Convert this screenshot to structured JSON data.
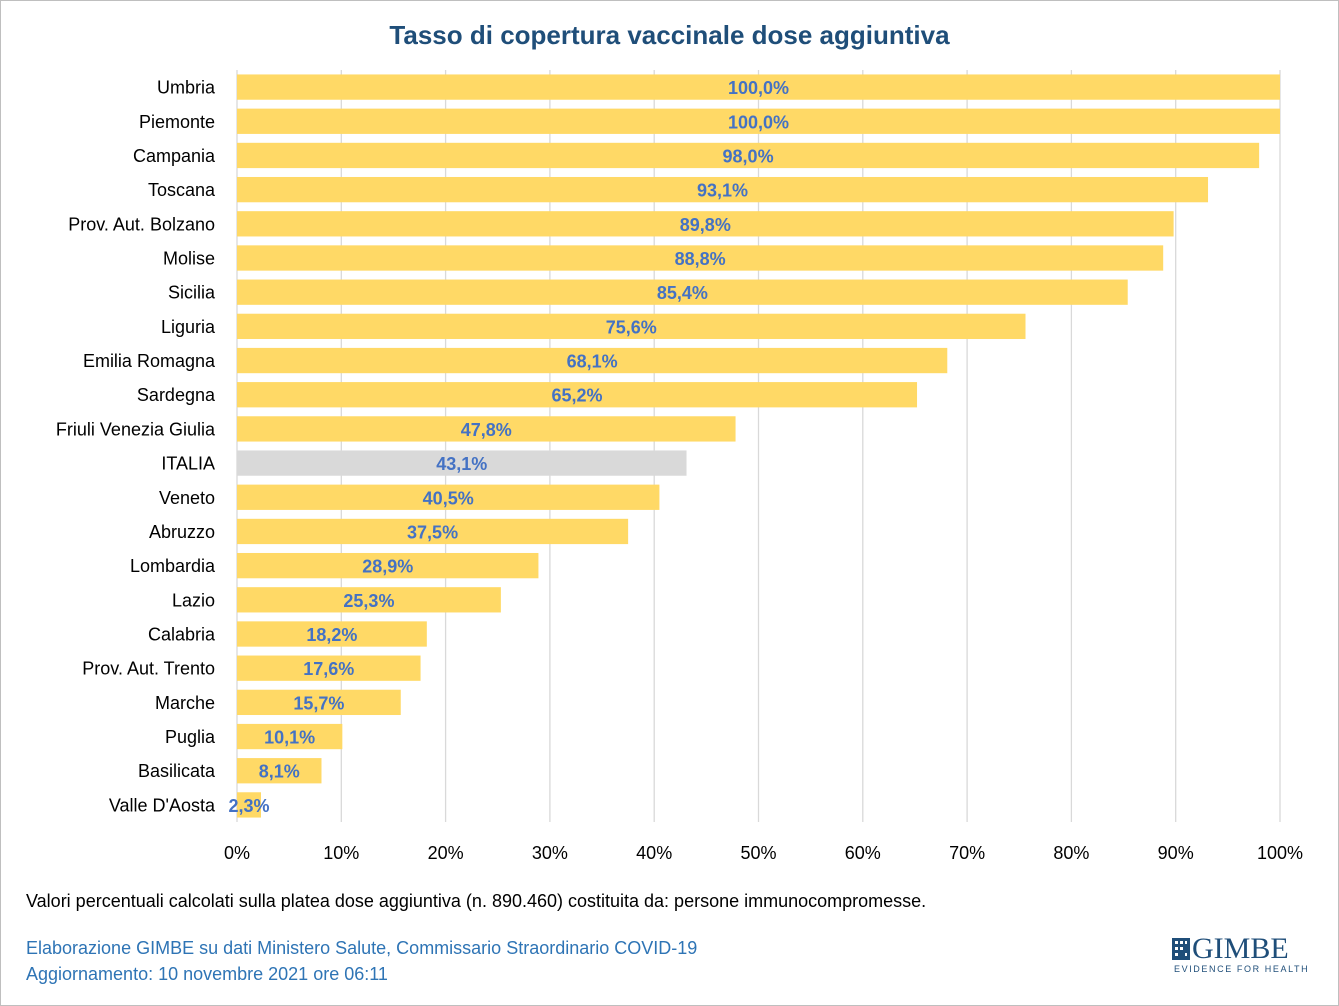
{
  "chart_data": {
    "type": "bar",
    "orientation": "horizontal",
    "title": "Tasso di copertura vaccinale dose aggiuntiva",
    "categories": [
      "Umbria",
      "Piemonte",
      "Campania",
      "Toscana",
      "Prov. Aut. Bolzano",
      "Molise",
      "Sicilia",
      "Liguria",
      "Emilia Romagna",
      "Sardegna",
      "Friuli Venezia Giulia",
      "ITALIA",
      "Veneto",
      "Abruzzo",
      "Lombardia",
      "Lazio",
      "Calabria",
      "Prov. Aut. Trento",
      "Marche",
      "Puglia",
      "Basilicata",
      "Valle D'Aosta"
    ],
    "values": [
      100.0,
      100.0,
      98.0,
      93.1,
      89.8,
      88.8,
      85.4,
      75.6,
      68.1,
      65.2,
      47.8,
      43.1,
      40.5,
      37.5,
      28.9,
      25.3,
      18.2,
      17.6,
      15.7,
      10.1,
      8.1,
      2.3
    ],
    "data_labels": [
      "100,0%",
      "100,0%",
      "98,0%",
      "93,1%",
      "89,8%",
      "88,8%",
      "85,4%",
      "75,6%",
      "68,1%",
      "65,2%",
      "47,8%",
      "43,1%",
      "40,5%",
      "37,5%",
      "28,9%",
      "25,3%",
      "18,2%",
      "17,6%",
      "15,7%",
      "10,1%",
      "8,1%",
      "2,3%"
    ],
    "highlight_category": "ITALIA",
    "xlim": [
      0,
      100
    ],
    "x_ticks": [
      "0%",
      "10%",
      "20%",
      "30%",
      "40%",
      "50%",
      "60%",
      "70%",
      "80%",
      "90%",
      "100%"
    ],
    "grid": true,
    "colors": {
      "bar": "#ffd966",
      "highlight": "#d9d9d9",
      "label": "#4472c4",
      "grid": "#d9d9d9"
    }
  },
  "footer": {
    "note": "Valori percentuali calcolati sulla platea dose aggiuntiva (n. 890.460) costituita da: persone immunocompromesse.",
    "source": "Elaborazione GIMBE su dati Ministero Salute, Commissario Straordinario COVID-19",
    "update": "Aggiornamento: 10 novembre 2021 ore 06:11"
  },
  "logo": {
    "name": "GIMBE",
    "tagline": "EVIDENCE FOR HEALTH",
    "icon": "gimbe-logo-icon"
  }
}
